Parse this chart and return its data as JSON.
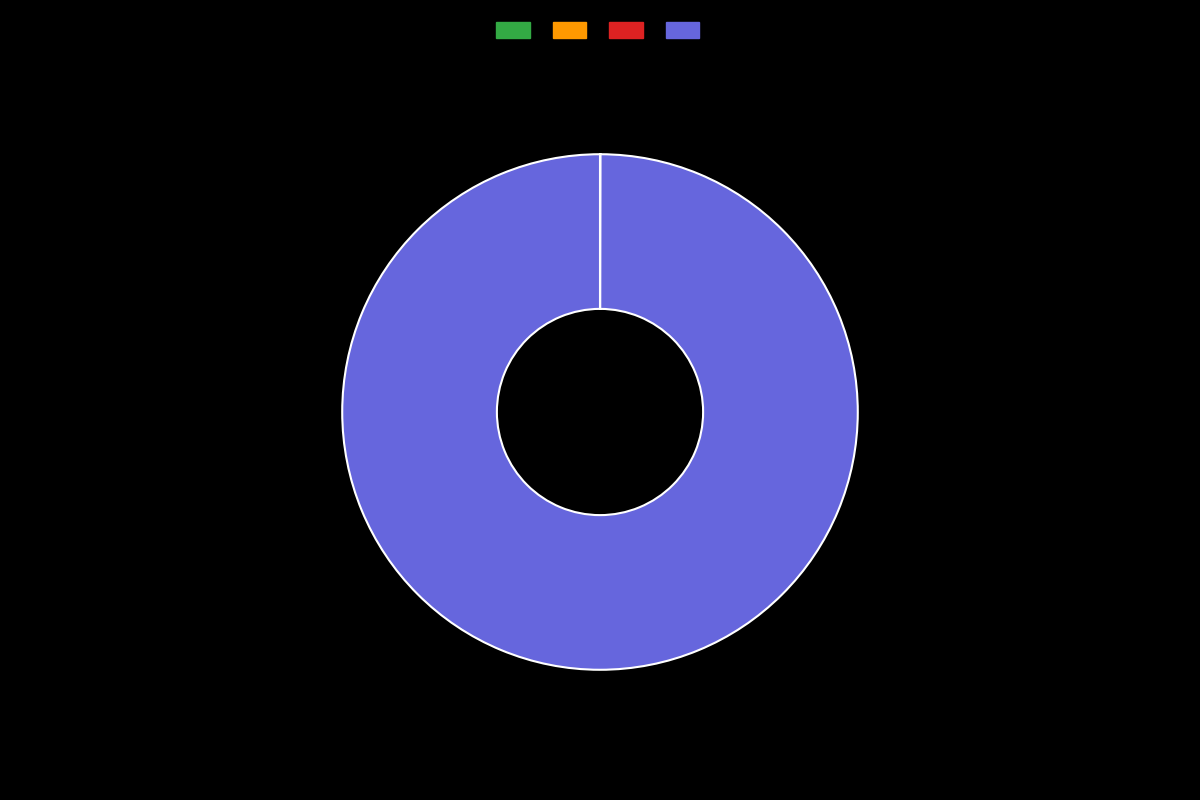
{
  "values": [
    0.01,
    0.01,
    0.01,
    99.97
  ],
  "colors": [
    "#33aa44",
    "#ff9900",
    "#dd2222",
    "#6666dd"
  ],
  "legend_labels": [
    "",
    "",
    "",
    ""
  ],
  "background_color": "#000000",
  "wedge_edge_color": "#ffffff",
  "wedge_linewidth": 1.5,
  "donut_width": 0.6,
  "figsize": [
    12,
    8
  ],
  "dpi": 100
}
